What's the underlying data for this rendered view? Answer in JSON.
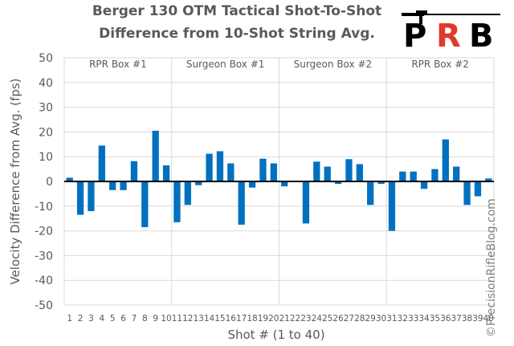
{
  "title_line1": "Berger 130 OTM Tactical Shot-To-Shot",
  "title_line2": "Difference from 10-Shot String Avg.",
  "logo_text": "PRB",
  "credit": "©PrecisionRifleBlog.com",
  "colors": {
    "bar": "#0070C0",
    "axis": "#000000",
    "grid": "#d9d9d9",
    "text": "#595959",
    "logo_red": "#e03a2a"
  },
  "chart_data": {
    "type": "bar",
    "title": "Berger 130 OTM Tactical Shot-To-Shot Difference from 10-Shot String Avg.",
    "xlabel": "Shot # (1 to 40)",
    "ylabel": "Velocity Difference from Avg. (fps)",
    "ylim": [
      -50,
      50
    ],
    "yticks": [
      50,
      40,
      30,
      20,
      10,
      0,
      -10,
      -20,
      -30,
      -40,
      -50
    ],
    "grid": "horizontal",
    "groups": [
      "RPR Box #1",
      "Surgeon Box #1",
      "Surgeon Box #2",
      "RPR Box #2"
    ],
    "categories": [
      "1",
      "2",
      "3",
      "4",
      "5",
      "6",
      "7",
      "8",
      "9",
      "10",
      "11",
      "12",
      "13",
      "14",
      "15",
      "16",
      "17",
      "18",
      "19",
      "20",
      "21",
      "22",
      "23",
      "24",
      "25",
      "26",
      "27",
      "28",
      "29",
      "30",
      "31",
      "32",
      "33",
      "34",
      "35",
      "36",
      "37",
      "38",
      "39",
      "40"
    ],
    "values": [
      1.5,
      -13.5,
      -12,
      14.5,
      -3.5,
      -3.5,
      8.2,
      -18.5,
      20.5,
      6.5,
      -16.5,
      -9.5,
      -1.5,
      11.2,
      12.2,
      7.3,
      -17.5,
      -2.5,
      9.2,
      7.3,
      -2,
      0,
      -17,
      8,
      6,
      -1,
      9,
      7,
      -9.5,
      -1,
      -20,
      4,
      4,
      -3,
      5,
      17,
      6,
      -9.5,
      -6,
      1.2
    ]
  }
}
